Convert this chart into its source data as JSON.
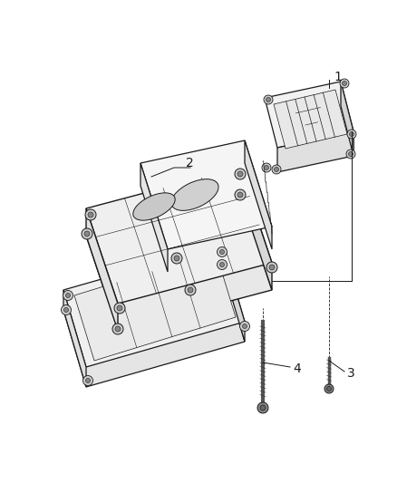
{
  "background_color": "#ffffff",
  "line_color": "#1a1a1a",
  "label_color": "#1a1a1a",
  "fig_width": 4.38,
  "fig_height": 5.33,
  "dpi": 100,
  "part1_label": "1",
  "part2_label": "2",
  "part3_label": "3",
  "part4_label": "4"
}
